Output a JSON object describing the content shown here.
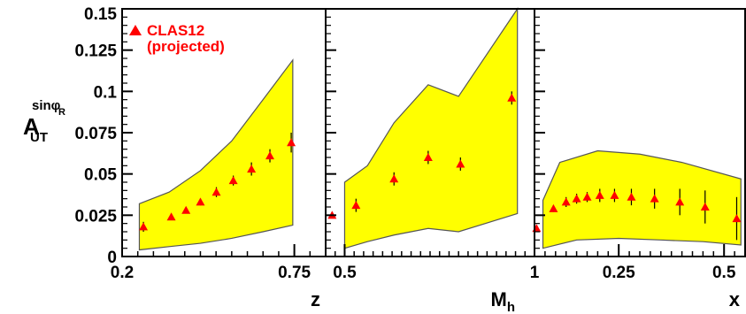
{
  "colors": {
    "band_fill": "#ffff00",
    "band_stroke": "#555555",
    "marker": "#ff0000",
    "axis": "#000000"
  },
  "legend": {
    "line1": "CLAS12",
    "line2": "(projected)",
    "marker_color": "#ff0000"
  },
  "ylabel": {
    "main": "A",
    "sub": "UT",
    "sup": "sinφ",
    "sup_sub": "R"
  },
  "chart_data": [
    {
      "type": "scatter",
      "xlabel": "z",
      "xlim": [
        0.2,
        0.85
      ],
      "ylim": [
        0,
        0.15
      ],
      "xticks": [
        {
          "value": 0.2,
          "label": "0.2"
        },
        {
          "value": 0.75,
          "label": "0.75"
        }
      ],
      "yticks": [
        {
          "value": 0,
          "label": "0"
        },
        {
          "value": 0.025,
          "label": "0.025"
        },
        {
          "value": 0.05,
          "label": "0.05"
        },
        {
          "value": 0.075,
          "label": "0.075"
        },
        {
          "value": 0.1,
          "label": "0.1"
        },
        {
          "value": 0.125,
          "label": "0.125"
        },
        {
          "value": 0.15,
          "label": "0.15"
        }
      ],
      "points": [
        {
          "x": 0.268,
          "y": 0.018,
          "err": 0.003
        },
        {
          "x": 0.357,
          "y": 0.024,
          "err": 0.002
        },
        {
          "x": 0.404,
          "y": 0.028,
          "err": 0.002
        },
        {
          "x": 0.45,
          "y": 0.033,
          "err": 0.002
        },
        {
          "x": 0.501,
          "y": 0.039,
          "err": 0.003
        },
        {
          "x": 0.555,
          "y": 0.046,
          "err": 0.003
        },
        {
          "x": 0.613,
          "y": 0.053,
          "err": 0.004
        },
        {
          "x": 0.672,
          "y": 0.061,
          "err": 0.004
        },
        {
          "x": 0.74,
          "y": 0.069,
          "err": 0.006
        }
      ],
      "band_upper": [
        [
          0.255,
          0.032
        ],
        [
          0.35,
          0.039
        ],
        [
          0.45,
          0.052
        ],
        [
          0.55,
          0.07
        ],
        [
          0.65,
          0.095
        ],
        [
          0.745,
          0.119
        ]
      ],
      "band_lower": [
        [
          0.255,
          0.004
        ],
        [
          0.35,
          0.006
        ],
        [
          0.45,
          0.008
        ],
        [
          0.55,
          0.011
        ],
        [
          0.65,
          0.015
        ],
        [
          0.745,
          0.019
        ]
      ]
    },
    {
      "type": "scatter",
      "xlabel": "M_h",
      "xlim": [
        0.45,
        1.0
      ],
      "ylim": [
        0,
        0.15
      ],
      "xticks": [
        {
          "value": 0.5,
          "label": "0.5"
        },
        {
          "value": 1.0,
          "label": "1"
        }
      ],
      "points": [
        {
          "x": 0.467,
          "y": 0.025,
          "err": 0.0
        },
        {
          "x": 0.53,
          "y": 0.031,
          "err": 0.004
        },
        {
          "x": 0.63,
          "y": 0.047,
          "err": 0.004
        },
        {
          "x": 0.72,
          "y": 0.06,
          "err": 0.004
        },
        {
          "x": 0.805,
          "y": 0.056,
          "err": 0.004
        },
        {
          "x": 0.94,
          "y": 0.096,
          "err": 0.004
        }
      ],
      "band_upper": [
        [
          0.5,
          0.045
        ],
        [
          0.56,
          0.055
        ],
        [
          0.63,
          0.081
        ],
        [
          0.72,
          0.104
        ],
        [
          0.8,
          0.097
        ],
        [
          0.955,
          0.15
        ]
      ],
      "band_lower": [
        [
          0.5,
          0.005
        ],
        [
          0.56,
          0.009
        ],
        [
          0.63,
          0.013
        ],
        [
          0.72,
          0.017
        ],
        [
          0.8,
          0.015
        ],
        [
          0.955,
          0.026
        ]
      ]
    },
    {
      "type": "scatter",
      "xlabel": "x",
      "xlim": [
        0.05,
        0.55
      ],
      "ylim": [
        0,
        0.15
      ],
      "xticks": [
        {
          "value": 0.25,
          "label": "0.25"
        },
        {
          "value": 0.5,
          "label": "0.5"
        }
      ],
      "points": [
        {
          "x": 0.055,
          "y": 0.017,
          "err": 0.0
        },
        {
          "x": 0.095,
          "y": 0.029,
          "err": 0.002
        },
        {
          "x": 0.125,
          "y": 0.033,
          "err": 0.003
        },
        {
          "x": 0.15,
          "y": 0.035,
          "err": 0.003
        },
        {
          "x": 0.175,
          "y": 0.036,
          "err": 0.003
        },
        {
          "x": 0.205,
          "y": 0.037,
          "err": 0.004
        },
        {
          "x": 0.24,
          "y": 0.037,
          "err": 0.004
        },
        {
          "x": 0.28,
          "y": 0.036,
          "err": 0.005
        },
        {
          "x": 0.335,
          "y": 0.035,
          "err": 0.006
        },
        {
          "x": 0.395,
          "y": 0.033,
          "err": 0.008
        },
        {
          "x": 0.455,
          "y": 0.03,
          "err": 0.01
        },
        {
          "x": 0.53,
          "y": 0.023,
          "err": 0.013
        }
      ],
      "band_upper": [
        [
          0.07,
          0.034
        ],
        [
          0.11,
          0.057
        ],
        [
          0.2,
          0.064
        ],
        [
          0.3,
          0.062
        ],
        [
          0.4,
          0.057
        ],
        [
          0.54,
          0.047
        ]
      ],
      "band_lower": [
        [
          0.07,
          0.005
        ],
        [
          0.15,
          0.01
        ],
        [
          0.25,
          0.011
        ],
        [
          0.35,
          0.01
        ],
        [
          0.45,
          0.009
        ],
        [
          0.54,
          0.007
        ]
      ]
    }
  ]
}
